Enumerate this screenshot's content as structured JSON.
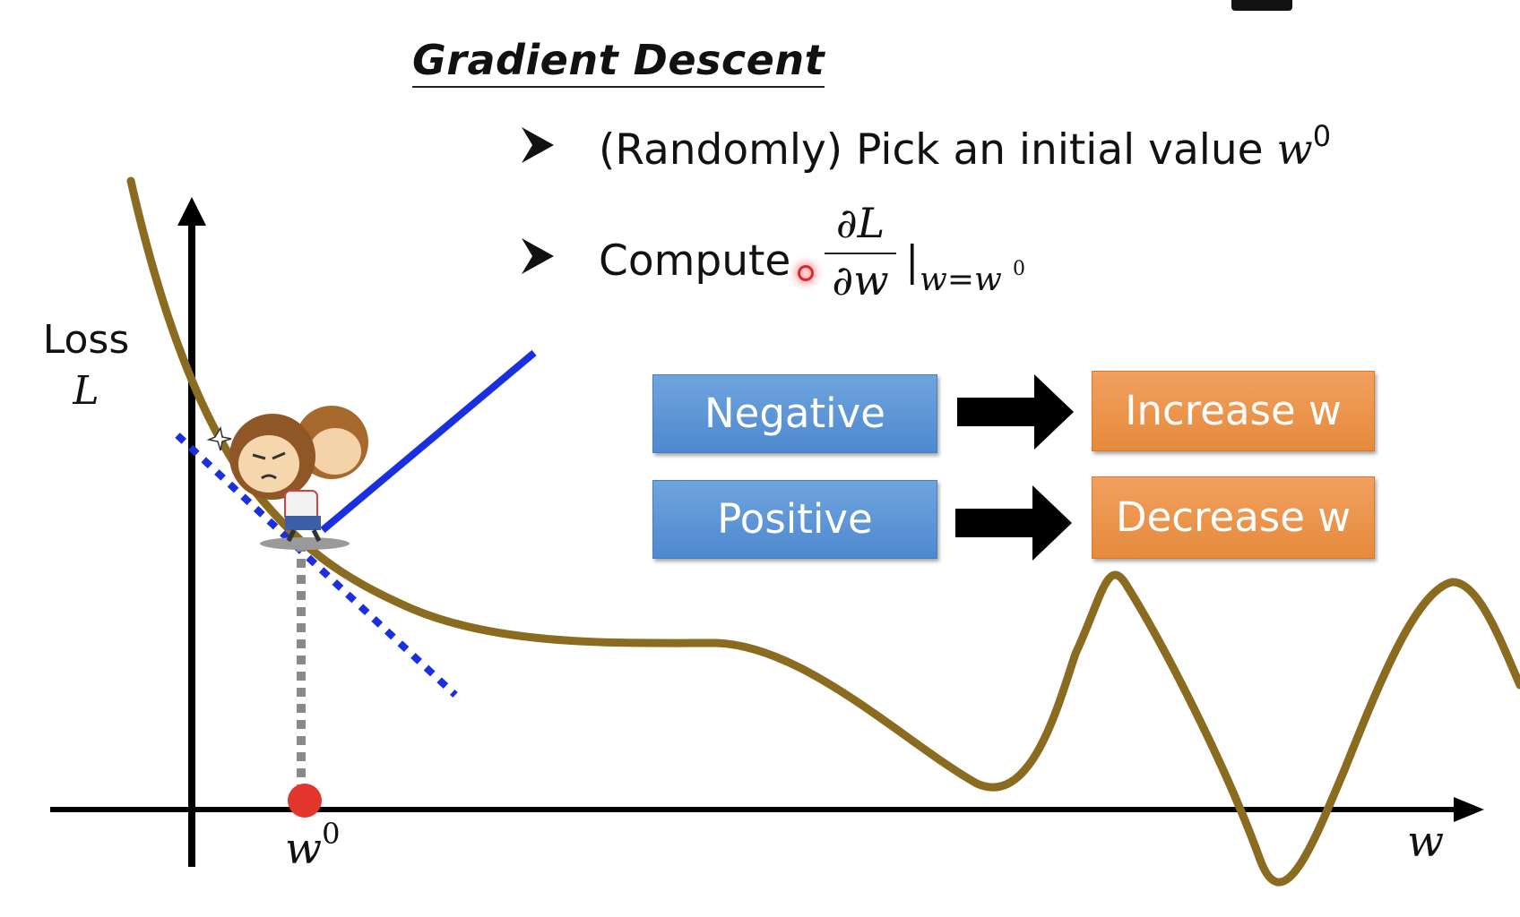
{
  "slide": {
    "title": "Gradient Descent",
    "bullet1": {
      "text": "(Randomly) Pick an initial value ",
      "var": "w",
      "sup": "0"
    },
    "bullet2": {
      "text": "Compute",
      "frac_num": "∂L",
      "frac_den": "∂w",
      "eval_bar": "|",
      "eval_sub": "w=w",
      "eval_sup": "0"
    }
  },
  "decision_table": {
    "rows": [
      {
        "condition": "Negative",
        "action": "Increase w"
      },
      {
        "condition": "Positive",
        "action": "Decrease w"
      }
    ]
  },
  "plot": {
    "y_axis_label": "Loss",
    "y_axis_symbol": "L",
    "x_axis_symbol": "w",
    "initial_point_label": "w",
    "initial_point_sup": "0"
  },
  "colors": {
    "curve": "#8a6b1f",
    "tangent": "#1a2fe0",
    "initial_point": "#e2352b",
    "box_blue": "#5b93d4",
    "box_orange": "#ec934b"
  },
  "icons": {
    "bullet": "arrowhead-bullet-icon",
    "flow_arrow": "right-arrow-icon",
    "cursor": "laser-pointer-icon",
    "mascot": "monkey-mascot-icon"
  }
}
